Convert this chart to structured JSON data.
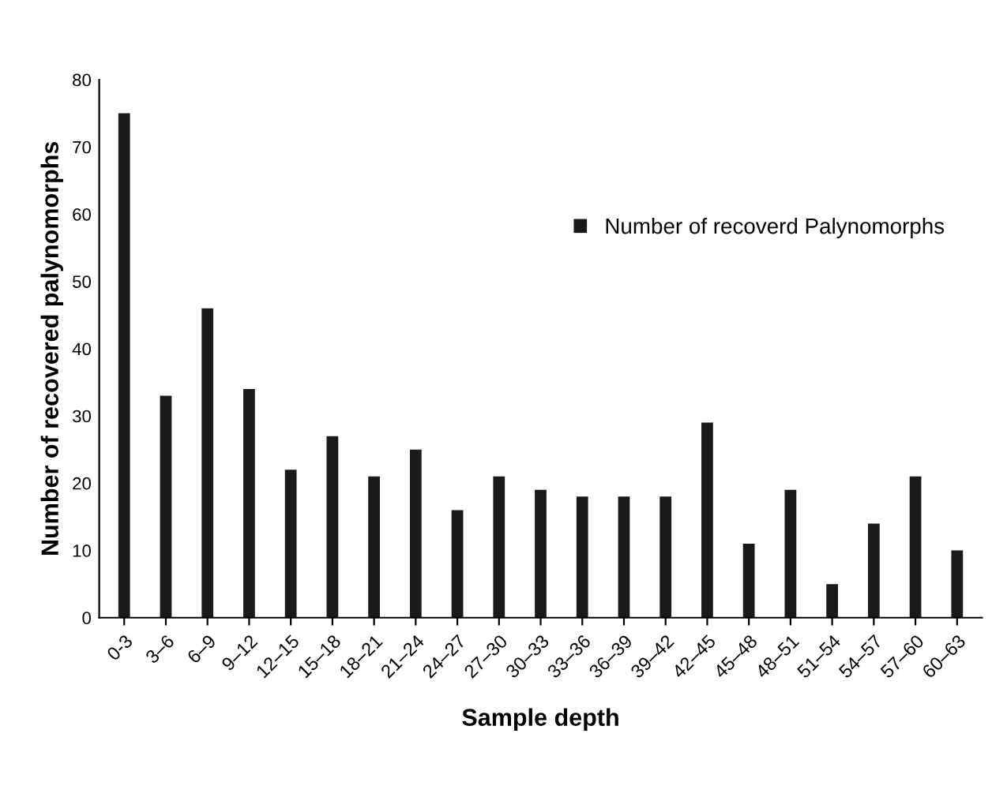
{
  "chart_data": {
    "type": "bar",
    "xlabel": "Sample depth",
    "ylabel": "Number of recovered palynomorphs",
    "categories": [
      "0-3",
      "3–6",
      "6–9",
      "9–12",
      "12–15",
      "15–18",
      "18–21",
      "21–24",
      "24–27",
      "27–30",
      "30–33",
      "33–36",
      "36–39",
      "39–42",
      "42–45",
      "45–48",
      "48–51",
      "51–54",
      "54–57",
      "57–60",
      "60–63"
    ],
    "series": [
      {
        "name": "Number of recoverd Palynomorphs",
        "color": "#1a1a1a",
        "values": [
          75,
          33,
          46,
          34,
          22,
          27,
          21,
          25,
          16,
          21,
          19,
          18,
          18,
          18,
          29,
          11,
          19,
          5,
          14,
          21,
          10
        ]
      }
    ],
    "ylim": [
      0,
      80
    ],
    "yticks": [
      0,
      10,
      20,
      30,
      40,
      50,
      60,
      70,
      80
    ],
    "grid": false,
    "legend": "top right"
  }
}
